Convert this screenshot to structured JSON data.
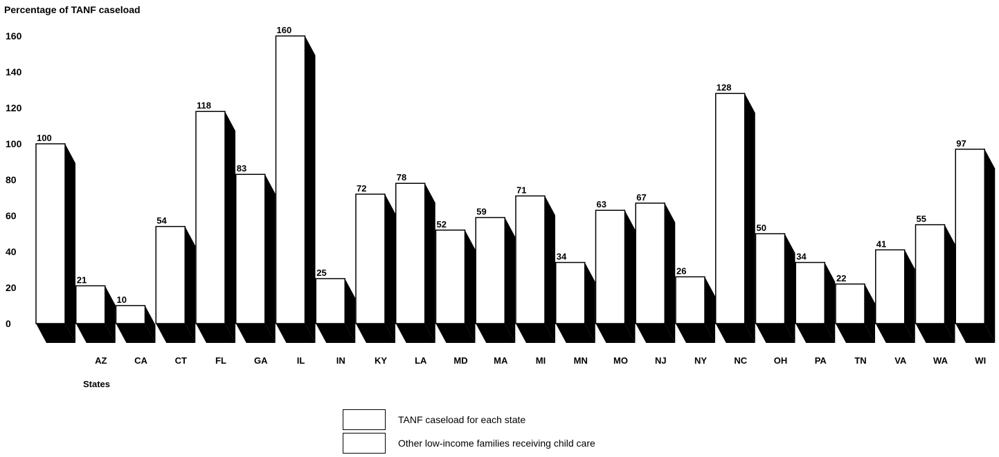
{
  "chart_data": {
    "type": "bar",
    "ylabel": "Percentage of TANF caseload",
    "xlabel": "States",
    "categories": [
      "",
      "AZ",
      "CA",
      "CT",
      "FL",
      "GA",
      "IL",
      "IN",
      "KY",
      "LA",
      "MD",
      "MA",
      "MI",
      "MN",
      "MO",
      "NJ",
      "NY",
      "NC",
      "OH",
      "PA",
      "TN",
      "VA",
      "WA",
      "WI"
    ],
    "values": [
      100,
      21,
      10,
      54,
      118,
      83,
      160,
      25,
      72,
      78,
      52,
      59,
      71,
      34,
      63,
      67,
      26,
      128,
      50,
      34,
      22,
      41,
      55,
      97
    ],
    "yticks": [
      0,
      20,
      40,
      60,
      80,
      100,
      120,
      140,
      160
    ],
    "ylim": [
      0,
      160
    ],
    "grid": false,
    "legend": [
      {
        "label": "TANF caseload for each state",
        "color": "#ffffff"
      },
      {
        "label": "Other low-income families receiving child care",
        "color": "#ffffff"
      }
    ],
    "colors": {
      "bar_face": "#ffffff",
      "bar_depth": "#000000",
      "text": "#000000"
    }
  }
}
